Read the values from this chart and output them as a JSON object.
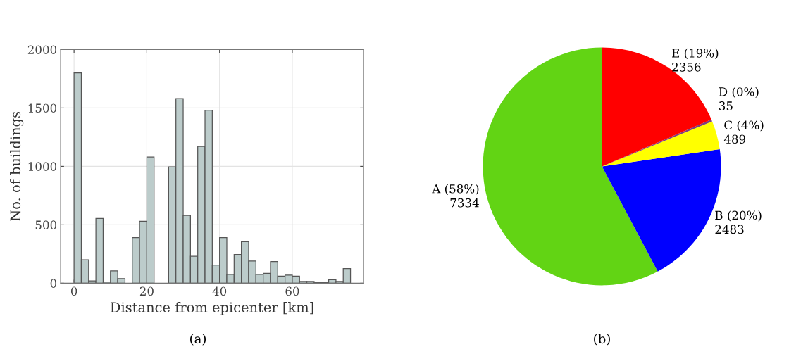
{
  "chart_data": [
    {
      "type": "histogram",
      "xlabel": "Distance from epicenter [km]",
      "ylabel": "No. of buildings",
      "bins": [
        0,
        2,
        4,
        6,
        8,
        10,
        12,
        14,
        16,
        18,
        20,
        22,
        24,
        26,
        28,
        30,
        32,
        34,
        36,
        38,
        40,
        42,
        44,
        46,
        48,
        50,
        52,
        54,
        56,
        58,
        60,
        62,
        64,
        66,
        68,
        70,
        72,
        74,
        76
      ],
      "values": [
        1800,
        200,
        20,
        555,
        10,
        105,
        40,
        0,
        390,
        530,
        1080,
        0,
        null,
        995,
        1580,
        580,
        230,
        1170,
        1480,
        155,
        390,
        75,
        245,
        355,
        190,
        75,
        85,
        185,
        60,
        70,
        60,
        15,
        15,
        5,
        5,
        30,
        15,
        125
      ],
      "color": "#bccccb",
      "xlim": [
        -3.7,
        79.6
      ],
      "ylim": [
        0,
        2000
      ],
      "xticks": [
        0,
        20,
        40,
        60
      ],
      "yticks": [
        0,
        500,
        1000,
        1500,
        2000
      ],
      "grid": true,
      "annotations": [
        "(a)"
      ]
    },
    {
      "type": "pie",
      "categories": [
        "A (58%)",
        "B (20%)",
        "C (4%)",
        "D (0%)",
        "E (19%)"
      ],
      "values": [
        7334,
        2483,
        489,
        35,
        2356
      ],
      "colors": [
        "#62d414",
        "#0000ff",
        "#ffff00",
        "#7f3f7f",
        "#ff0000"
      ],
      "data_labels": true,
      "annotations": [
        "(b)"
      ]
    }
  ]
}
